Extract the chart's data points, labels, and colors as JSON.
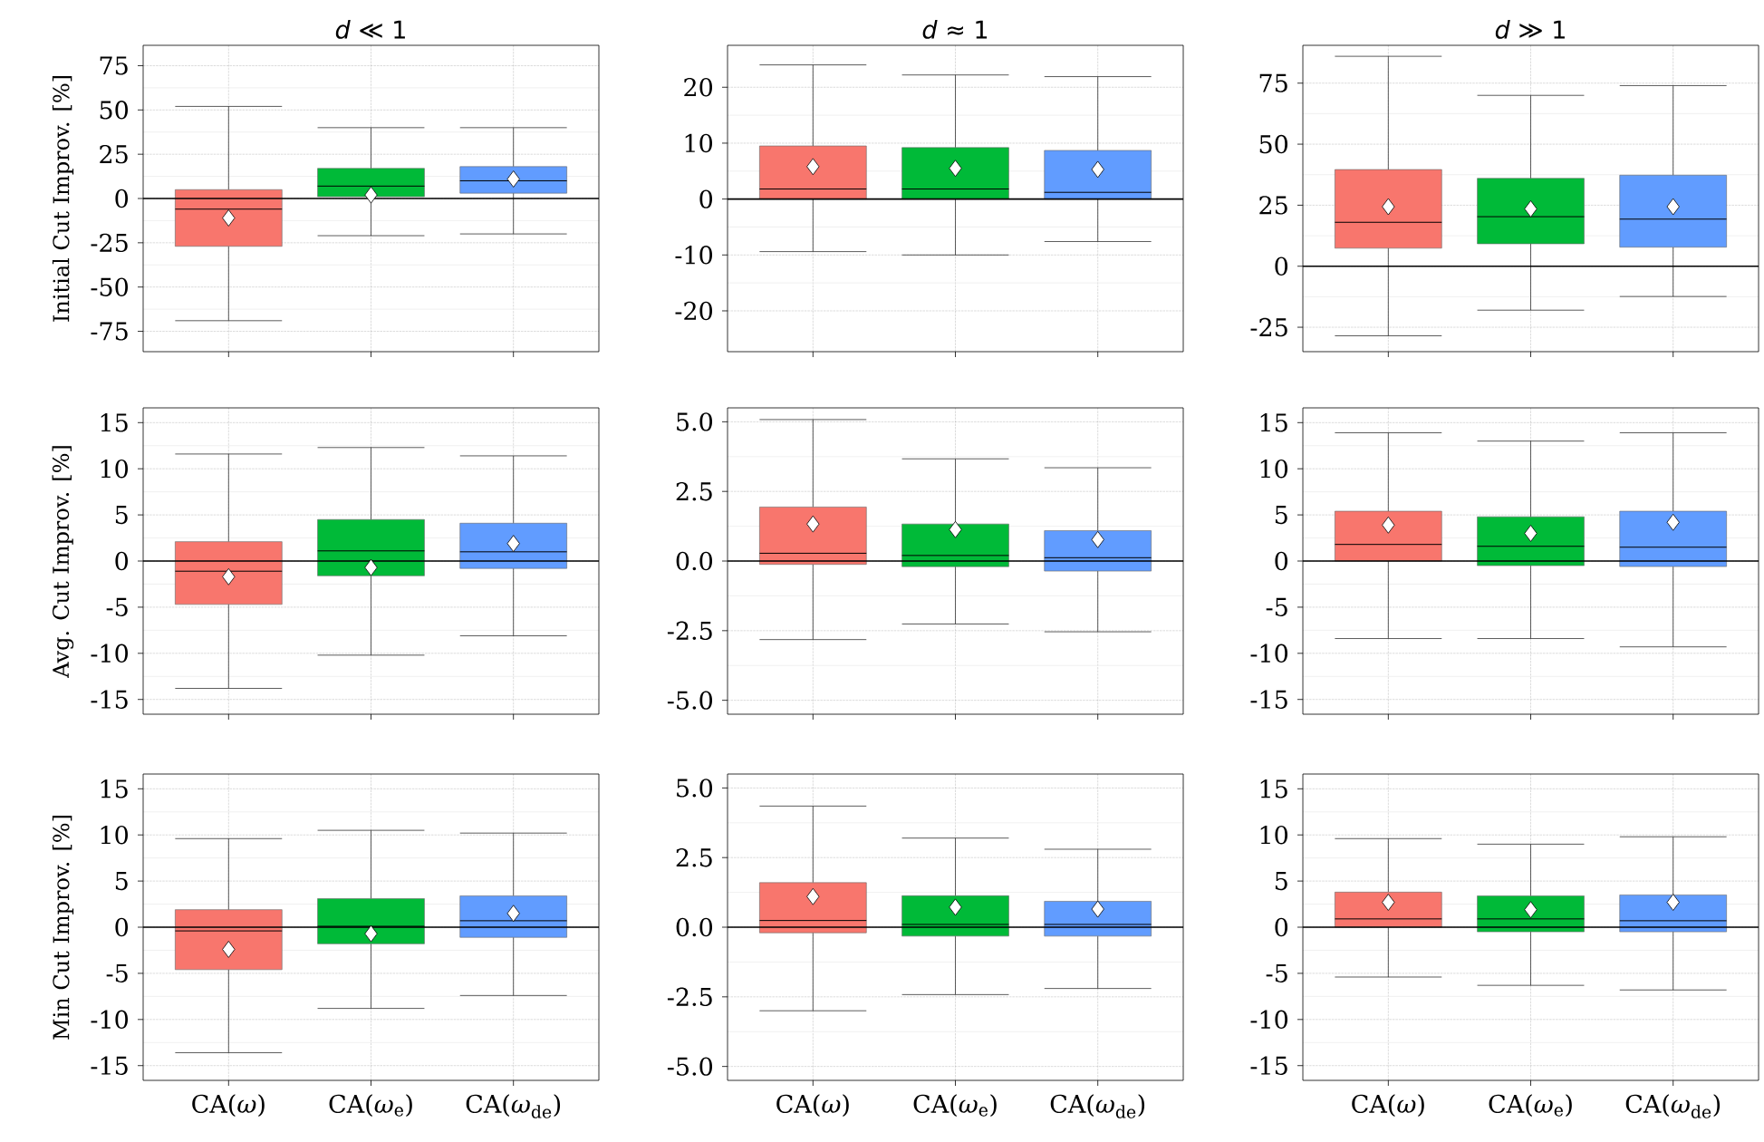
{
  "chart_data": [
    {
      "type": "box",
      "title": "*d* ≪ 1",
      "ylabel": "Initial Cut Improv. [%]",
      "categories": [
        null,
        null,
        null
      ],
      "colors": [
        "#f8766d",
        "#00ba38",
        "#619cff"
      ],
      "ylim": [
        -86.5,
        86.5
      ],
      "yticks": [
        -75,
        -50,
        -25,
        0,
        25,
        50,
        75
      ],
      "grid": true,
      "tick_labels": "y",
      "ref_lines": [
        {
          "axis": "y",
          "value": 0
        }
      ],
      "boxes": [
        {
          "low": -69,
          "q1": -27,
          "median": -6,
          "q3": 5,
          "high": 52,
          "mean": -11
        },
        {
          "low": -21,
          "q1": 1,
          "median": 7,
          "q3": 17,
          "high": 40,
          "mean": 2
        },
        {
          "low": -20,
          "q1": 3,
          "median": 10,
          "q3": 18,
          "high": 40,
          "mean": 11
        }
      ]
    },
    {
      "type": "box",
      "title": "*d* ≈ 1",
      "categories": [
        null,
        null,
        null
      ],
      "colors": [
        "#f8766d",
        "#00ba38",
        "#619cff"
      ],
      "ylim": [
        -27.3,
        27.5
      ],
      "yticks": [
        -20,
        -10,
        0,
        10,
        20
      ],
      "grid": true,
      "tick_labels": "y",
      "ref_lines": [
        {
          "axis": "y",
          "value": 0
        }
      ],
      "boxes": [
        {
          "low": -9.4,
          "q1": 0,
          "median": 1.8,
          "q3": 9.5,
          "high": 24,
          "mean": 5.8
        },
        {
          "low": -10,
          "q1": 0,
          "median": 1.8,
          "q3": 9.2,
          "high": 22.2,
          "mean": 5.5
        },
        {
          "low": -7.6,
          "q1": 0,
          "median": 1.2,
          "q3": 8.7,
          "high": 21.9,
          "mean": 5.3
        }
      ]
    },
    {
      "type": "box",
      "title": "*d* ≫ 1",
      "categories": [
        null,
        null,
        null
      ],
      "colors": [
        "#f8766d",
        "#00ba38",
        "#619cff"
      ],
      "ylim": [
        -35,
        90.5
      ],
      "yticks": [
        -25,
        0,
        25,
        50,
        75
      ],
      "grid": true,
      "tick_labels": "y",
      "ref_lines": [
        {
          "axis": "y",
          "value": 0
        }
      ],
      "boxes": [
        {
          "low": -28.5,
          "q1": 7.4,
          "median": 18,
          "q3": 39.6,
          "high": 86,
          "mean": 24.4
        },
        {
          "low": -18,
          "q1": 9.2,
          "median": 20.3,
          "q3": 36,
          "high": 70,
          "mean": 23.5
        },
        {
          "low": -12.4,
          "q1": 7.8,
          "median": 19.3,
          "q3": 37.3,
          "high": 74,
          "mean": 24.4
        }
      ]
    },
    {
      "type": "box",
      "ylabel": "Avg. Cut Improv. [%]",
      "categories": [
        null,
        null,
        null
      ],
      "colors": [
        "#f8766d",
        "#00ba38",
        "#619cff"
      ],
      "ylim": [
        -16.6,
        16.6
      ],
      "yticks": [
        -15,
        -10,
        -5,
        0,
        5,
        10,
        15
      ],
      "grid": true,
      "tick_labels": "y",
      "ref_lines": [
        {
          "axis": "y",
          "value": 0
        }
      ],
      "boxes": [
        {
          "low": -13.8,
          "q1": -4.7,
          "median": -1.1,
          "q3": 2.1,
          "high": 11.6,
          "mean": -1.7
        },
        {
          "low": -10.2,
          "q1": -1.6,
          "median": 1.1,
          "q3": 4.5,
          "high": 12.3,
          "mean": -0.7
        },
        {
          "low": -8.1,
          "q1": -0.8,
          "median": 1.0,
          "q3": 4.1,
          "high": 11.4,
          "mean": 1.9
        }
      ]
    },
    {
      "type": "box",
      "categories": [
        null,
        null,
        null
      ],
      "colors": [
        "#f8766d",
        "#00ba38",
        "#619cff"
      ],
      "ylim": [
        -5.5,
        5.5
      ],
      "yticks": [
        {
          "value": -5,
          "label": "-5.0"
        },
        {
          "value": -2.5,
          "label": "-2.5"
        },
        {
          "value": 0,
          "label": "0.0"
        },
        {
          "value": 2.5,
          "label": "2.5"
        },
        {
          "value": 5,
          "label": "5.0"
        }
      ],
      "grid": true,
      "tick_labels": "y",
      "ref_lines": [
        {
          "axis": "y",
          "value": 0
        }
      ],
      "boxes": [
        {
          "low": -2.82,
          "q1": -0.12,
          "median": 0.28,
          "q3": 1.94,
          "high": 5.08,
          "mean": 1.33
        },
        {
          "low": -2.26,
          "q1": -0.2,
          "median": 0.2,
          "q3": 1.33,
          "high": 3.67,
          "mean": 1.13
        },
        {
          "low": -2.54,
          "q1": -0.36,
          "median": 0.12,
          "q3": 1.09,
          "high": 3.35,
          "mean": 0.77
        }
      ]
    },
    {
      "type": "box",
      "categories": [
        null,
        null,
        null
      ],
      "colors": [
        "#f8766d",
        "#00ba38",
        "#619cff"
      ],
      "ylim": [
        -16.6,
        16.6
      ],
      "yticks": [
        -15,
        -10,
        -5,
        0,
        5,
        10,
        15
      ],
      "grid": true,
      "tick_labels": "y",
      "ref_lines": [
        {
          "axis": "y",
          "value": 0
        }
      ],
      "boxes": [
        {
          "low": -8.4,
          "q1": 0,
          "median": 1.8,
          "q3": 5.4,
          "high": 13.9,
          "mean": 3.9
        },
        {
          "low": -8.4,
          "q1": -0.5,
          "median": 1.6,
          "q3": 4.8,
          "high": 13,
          "mean": 3.0
        },
        {
          "low": -9.3,
          "q1": -0.6,
          "median": 1.5,
          "q3": 5.4,
          "high": 13.9,
          "mean": 4.2
        }
      ]
    },
    {
      "type": "box",
      "ylabel": "Min Cut Improv. [%]",
      "categories": [
        "CA(*ω*)",
        "CA(*ω*$_{e}$)",
        "CA(*ω*$_{de}$)"
      ],
      "colors": [
        "#f8766d",
        "#00ba38",
        "#619cff"
      ],
      "ylim": [
        -16.6,
        16.6
      ],
      "yticks": [
        -15,
        -10,
        -5,
        0,
        5,
        10,
        15
      ],
      "grid": true,
      "ref_lines": [
        {
          "axis": "y",
          "value": 0
        }
      ],
      "boxes": [
        {
          "low": -13.6,
          "q1": -4.6,
          "median": -0.4,
          "q3": 1.9,
          "high": 9.6,
          "mean": -2.4
        },
        {
          "low": -8.8,
          "q1": -1.8,
          "median": 0.1,
          "q3": 3.1,
          "high": 10.5,
          "mean": -0.7
        },
        {
          "low": -7.4,
          "q1": -1.1,
          "median": 0.7,
          "q3": 3.4,
          "high": 10.2,
          "mean": 1.5
        }
      ]
    },
    {
      "type": "box",
      "categories": [
        "CA(*ω*)",
        "CA(*ω*$_{e}$)",
        "CA(*ω*$_{de}$)"
      ],
      "colors": [
        "#f8766d",
        "#00ba38",
        "#619cff"
      ],
      "ylim": [
        -5.5,
        5.5
      ],
      "yticks": [
        {
          "value": -5,
          "label": "-5.0"
        },
        {
          "value": -2.5,
          "label": "-2.5"
        },
        {
          "value": 0,
          "label": "0.0"
        },
        {
          "value": 2.5,
          "label": "2.5"
        },
        {
          "value": 5,
          "label": "5.0"
        }
      ],
      "grid": true,
      "ref_lines": [
        {
          "axis": "y",
          "value": 0
        }
      ],
      "boxes": [
        {
          "low": -3.0,
          "q1": -0.2,
          "median": 0.24,
          "q3": 1.6,
          "high": 4.35,
          "mean": 1.1
        },
        {
          "low": -2.42,
          "q1": -0.32,
          "median": 0.1,
          "q3": 1.13,
          "high": 3.2,
          "mean": 0.72
        },
        {
          "low": -2.2,
          "q1": -0.32,
          "median": 0.1,
          "q3": 0.93,
          "high": 2.8,
          "mean": 0.65
        }
      ]
    },
    {
      "type": "box",
      "categories": [
        "CA(*ω*)",
        "CA(*ω*$_{e}$)",
        "CA(*ω*$_{de}$)"
      ],
      "colors": [
        "#f8766d",
        "#00ba38",
        "#619cff"
      ],
      "ylim": [
        -16.6,
        16.6
      ],
      "yticks": [
        -15,
        -10,
        -5,
        0,
        5,
        10,
        15
      ],
      "grid": true,
      "ref_lines": [
        {
          "axis": "y",
          "value": 0
        }
      ],
      "boxes": [
        {
          "low": -5.4,
          "q1": 0,
          "median": 0.9,
          "q3": 3.8,
          "high": 9.6,
          "mean": 2.7
        },
        {
          "low": -6.3,
          "q1": -0.5,
          "median": 0.9,
          "q3": 3.4,
          "high": 9.0,
          "mean": 1.9
        },
        {
          "low": -6.8,
          "q1": -0.5,
          "median": 0.7,
          "q3": 3.5,
          "high": 9.8,
          "mean": 2.7
        }
      ]
    }
  ]
}
